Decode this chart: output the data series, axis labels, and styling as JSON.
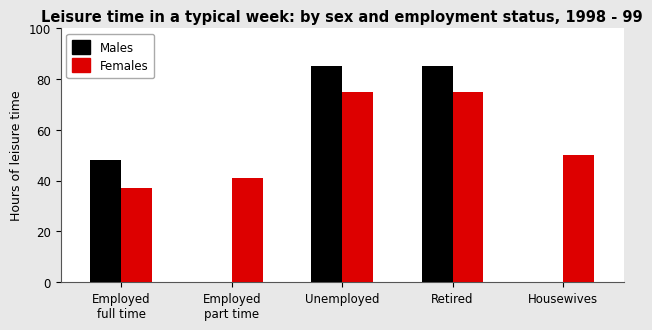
{
  "title": "Leisure time in a typical week: by sex and employment status, 1998 - 99",
  "categories": [
    "Employed\nfull time",
    "Employed\npart time",
    "Unemployed",
    "Retired",
    "Housewives"
  ],
  "males": [
    48,
    0,
    85,
    85,
    0
  ],
  "females": [
    37,
    41,
    75,
    75,
    50
  ],
  "male_color": "#000000",
  "female_color": "#dd0000",
  "ylabel": "Hours of leisure time",
  "ylim": [
    0,
    100
  ],
  "yticks": [
    0,
    20,
    40,
    60,
    80,
    100
  ],
  "legend_labels": [
    "Males",
    "Females"
  ],
  "bar_width": 0.28,
  "title_fontsize": 10.5,
  "axis_fontsize": 9,
  "tick_fontsize": 8.5,
  "legend_fontsize": 8.5,
  "fig_bg": "#e8e8e8",
  "plot_bg": "#ffffff"
}
